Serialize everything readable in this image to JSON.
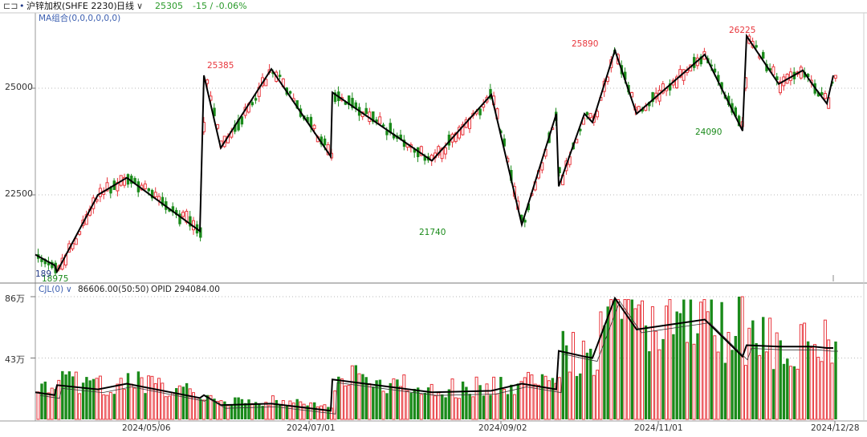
{
  "header": {
    "icon": "window-toggle-icon",
    "symbol_bullet": "•",
    "symbol_name": "沪锌加权(SHFE 2230)",
    "period": "日线",
    "period_caret": "∨",
    "last_price": "25305",
    "change": "-15 / -0.06%"
  },
  "main_panel": {
    "indicator_label": "MA组合(0,0,0,0,0,0)"
  },
  "volume_panel": {
    "indicator_label": "CJL(0)",
    "caret": "∨",
    "volume_value": "86606.00(50:50)",
    "opid_label": "OPID 294084.00"
  },
  "colors": {
    "up": "#e8363c",
    "down": "#1a8a1a",
    "zigzag": "#000000",
    "header_green": "#2a9a2a"
  },
  "chart_data": [
    {
      "type": "candlestick",
      "price_axis": {
        "ticks": [
          22500,
          25000
        ]
      },
      "x_dates": [
        "2024/05/06",
        "2024/07/01",
        "2024/09/02",
        "2024/11/01",
        "2024/12/28"
      ],
      "extreme_labels": [
        {
          "label": "18975",
          "color": "#1a8a1a"
        },
        {
          "label": "189",
          "color": "#223a88"
        },
        {
          "label": "25385",
          "color": "#e8363c"
        },
        {
          "label": "21740",
          "color": "#1a8a1a"
        },
        {
          "label": "25890",
          "color": "#e8363c"
        },
        {
          "label": "24090",
          "color": "#1a8a1a"
        },
        {
          "label": "26225",
          "color": "#e8363c"
        }
      ],
      "zigzag_price": [
        21100,
        20850,
        20700,
        22500,
        22900,
        21650,
        25300,
        23600,
        25450,
        23400,
        24900,
        23300,
        24850,
        21800,
        24400,
        22700,
        24400,
        24200,
        25890,
        24400,
        25790,
        24000,
        26225,
        25100,
        25420,
        25040,
        24640,
        25300
      ],
      "zigzag_volume_wan": [
        19,
        17,
        24,
        21,
        25,
        15,
        17,
        10,
        11,
        6,
        28,
        19,
        20,
        25,
        21,
        48,
        44,
        43,
        85,
        63,
        70,
        44,
        52,
        51,
        51,
        51,
        50,
        50
      ]
    },
    {
      "type": "bar",
      "name": "CJL",
      "volume_axis": {
        "ticks": [
          "43万",
          "86万"
        ]
      }
    }
  ]
}
